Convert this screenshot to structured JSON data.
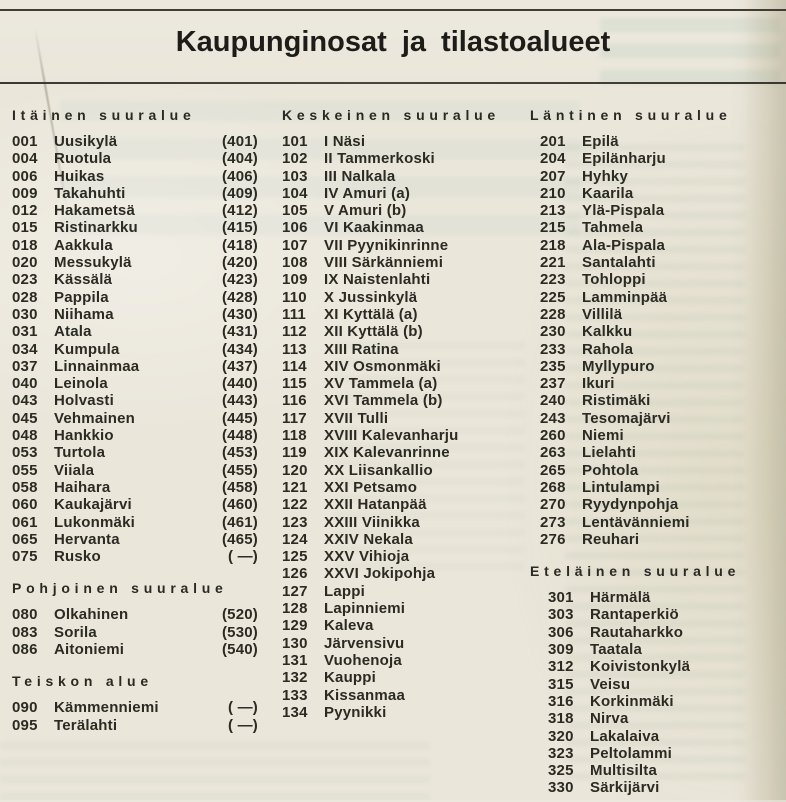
{
  "page": {
    "title": "Kaupunginosat ja tilastoalueet"
  },
  "colors": {
    "paper": "#eae6da",
    "ink": "#26251f",
    "rule": "#403d34",
    "ghost_print": "#78a896"
  },
  "columns": [
    {
      "sections": [
        {
          "heading": "Itäinen suuralue",
          "rows": [
            {
              "code": "001",
              "name": "Uusikylä",
              "stat": "(401)"
            },
            {
              "code": "004",
              "name": "Ruotula",
              "stat": "(404)"
            },
            {
              "code": "006",
              "name": "Huikas",
              "stat": "(406)"
            },
            {
              "code": "009",
              "name": "Takahuhti",
              "stat": "(409)"
            },
            {
              "code": "012",
              "name": "Hakametsä",
              "stat": "(412)"
            },
            {
              "code": "015",
              "name": "Ristinarkku",
              "stat": "(415)"
            },
            {
              "code": "018",
              "name": "Aakkula",
              "stat": "(418)"
            },
            {
              "code": "020",
              "name": "Messukylä",
              "stat": "(420)"
            },
            {
              "code": "023",
              "name": "Kässälä",
              "stat": "(423)"
            },
            {
              "code": "028",
              "name": "Pappila",
              "stat": "(428)"
            },
            {
              "code": "030",
              "name": "Niihama",
              "stat": "(430)"
            },
            {
              "code": "031",
              "name": "Atala",
              "stat": "(431)"
            },
            {
              "code": "034",
              "name": "Kumpula",
              "stat": "(434)"
            },
            {
              "code": "037",
              "name": "Linnainmaa",
              "stat": "(437)"
            },
            {
              "code": "040",
              "name": "Leinola",
              "stat": "(440)"
            },
            {
              "code": "043",
              "name": "Holvasti",
              "stat": "(443)"
            },
            {
              "code": "045",
              "name": "Vehmainen",
              "stat": "(445)"
            },
            {
              "code": "048",
              "name": "Hankkio",
              "stat": "(448)"
            },
            {
              "code": "053",
              "name": "Turtola",
              "stat": "(453)"
            },
            {
              "code": "055",
              "name": "Viiala",
              "stat": "(455)"
            },
            {
              "code": "058",
              "name": "Haihara",
              "stat": "(458)"
            },
            {
              "code": "060",
              "name": "Kaukajärvi",
              "stat": "(460)"
            },
            {
              "code": "061",
              "name": "Lukonmäki",
              "stat": "(461)"
            },
            {
              "code": "065",
              "name": "Hervanta",
              "stat": "(465)"
            },
            {
              "code": "075",
              "name": "Rusko",
              "stat": "( —)"
            }
          ]
        },
        {
          "heading": "Pohjoinen suuralue",
          "rows": [
            {
              "code": "080",
              "name": "Olkahinen",
              "stat": "(520)"
            },
            {
              "code": "083",
              "name": "Sorila",
              "stat": "(530)"
            },
            {
              "code": "086",
              "name": "Aitoniemi",
              "stat": "(540)"
            }
          ]
        },
        {
          "heading": "Teiskon alue",
          "rows": [
            {
              "code": "090",
              "name": "Kämmenniemi",
              "stat": "( —)"
            },
            {
              "code": "095",
              "name": "Terälahti",
              "stat": "( —)"
            }
          ]
        }
      ]
    },
    {
      "sections": [
        {
          "heading": "Keskeinen suuralue",
          "rows": [
            {
              "code": "101",
              "name": "I Näsi"
            },
            {
              "code": "102",
              "name": "II Tammerkoski"
            },
            {
              "code": "103",
              "name": "III Nalkala"
            },
            {
              "code": "104",
              "name": "IV Amuri (a)"
            },
            {
              "code": "105",
              "name": "V Amuri (b)"
            },
            {
              "code": "106",
              "name": "VI Kaakinmaa"
            },
            {
              "code": "107",
              "name": "VII Pyynikinrinne"
            },
            {
              "code": "108",
              "name": "VIII Särkänniemi"
            },
            {
              "code": "109",
              "name": "IX Naistenlahti"
            },
            {
              "code": "110",
              "name": "X Jussinkylä"
            },
            {
              "code": "111",
              "name": "XI Kyttälä (a)"
            },
            {
              "code": "112",
              "name": "XII Kyttälä (b)"
            },
            {
              "code": "113",
              "name": "XIII Ratina"
            },
            {
              "code": "114",
              "name": "XIV Osmonmäki"
            },
            {
              "code": "115",
              "name": "XV Tammela (a)"
            },
            {
              "code": "116",
              "name": "XVI Tammela (b)"
            },
            {
              "code": "117",
              "name": "XVII Tulli"
            },
            {
              "code": "118",
              "name": "XVIII Kalevanharju"
            },
            {
              "code": "119",
              "name": "XIX Kalevanrinne"
            },
            {
              "code": "120",
              "name": "XX Liisankallio"
            },
            {
              "code": "121",
              "name": "XXI Petsamo"
            },
            {
              "code": "122",
              "name": "XXII Hatanpää"
            },
            {
              "code": "123",
              "name": "XXIII Viinikka"
            },
            {
              "code": "124",
              "name": "XXIV Nekala"
            },
            {
              "code": "125",
              "name": "XXV Vihioja"
            },
            {
              "code": "126",
              "name": "XXVI Jokipohja"
            },
            {
              "code": "127",
              "name": "Lappi"
            },
            {
              "code": "128",
              "name": "Lapinniemi"
            },
            {
              "code": "129",
              "name": "Kaleva"
            },
            {
              "code": "130",
              "name": "Järvensivu"
            },
            {
              "code": "131",
              "name": "Vuohenoja"
            },
            {
              "code": "132",
              "name": "Kauppi"
            },
            {
              "code": "133",
              "name": "Kissanmaa"
            },
            {
              "code": "134",
              "name": "Pyynikki"
            }
          ]
        }
      ]
    },
    {
      "sections": [
        {
          "heading": "Läntinen suuralue",
          "rows": [
            {
              "code": "201",
              "name": "Epilä"
            },
            {
              "code": "204",
              "name": "Epilänharju"
            },
            {
              "code": "207",
              "name": "Hyhky"
            },
            {
              "code": "210",
              "name": "Kaarila"
            },
            {
              "code": "213",
              "name": "Ylä-Pispala"
            },
            {
              "code": "215",
              "name": "Tahmela"
            },
            {
              "code": "218",
              "name": "Ala-Pispala"
            },
            {
              "code": "221",
              "name": "Santalahti"
            },
            {
              "code": "223",
              "name": "Tohloppi"
            },
            {
              "code": "225",
              "name": "Lamminpää"
            },
            {
              "code": "228",
              "name": "Villilä"
            },
            {
              "code": "230",
              "name": "Kalkku"
            },
            {
              "code": "233",
              "name": "Rahola"
            },
            {
              "code": "235",
              "name": "Myllypuro"
            },
            {
              "code": "237",
              "name": "Ikuri"
            },
            {
              "code": "240",
              "name": "Ristimäki"
            },
            {
              "code": "243",
              "name": "Tesomajärvi"
            },
            {
              "code": "260",
              "name": "Niemi"
            },
            {
              "code": "263",
              "name": "Lielahti"
            },
            {
              "code": "265",
              "name": "Pohtola"
            },
            {
              "code": "268",
              "name": "Lintulampi"
            },
            {
              "code": "270",
              "name": "Ryydynpohja"
            },
            {
              "code": "273",
              "name": "Lentävänniemi"
            },
            {
              "code": "276",
              "name": "Reuhari"
            }
          ]
        },
        {
          "heading": "Eteläinen suuralue",
          "indent": true,
          "rows": [
            {
              "code": "301",
              "name": "Härmälä"
            },
            {
              "code": "303",
              "name": "Rantaperkiö"
            },
            {
              "code": "306",
              "name": "Rautaharkko"
            },
            {
              "code": "309",
              "name": "Taatala"
            },
            {
              "code": "312",
              "name": "Koivistonkylä"
            },
            {
              "code": "315",
              "name": "Veisu"
            },
            {
              "code": "316",
              "name": "Korkinmäki"
            },
            {
              "code": "318",
              "name": "Nirva"
            },
            {
              "code": "320",
              "name": "Lakalaiva"
            },
            {
              "code": "323",
              "name": "Peltolammi"
            },
            {
              "code": "325",
              "name": "Multisilta"
            },
            {
              "code": "330",
              "name": "Särkijärvi"
            }
          ]
        }
      ]
    }
  ]
}
